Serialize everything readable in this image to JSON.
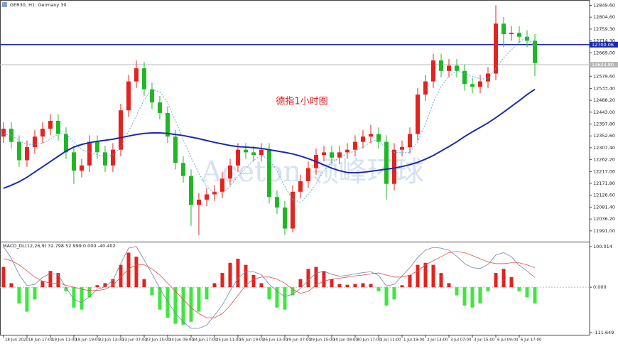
{
  "chart_data": [
    {
      "type": "candlestick",
      "title": "GER30, H1: Germany 30",
      "annotation": "德指1小时图",
      "watermark": "Aceton 领峰环球",
      "up_color": "#e3231f",
      "down_color": "#1fb824",
      "open": [
        12350,
        12380,
        12330,
        12260,
        12310,
        12350,
        12380,
        12410,
        12360,
        12290,
        12220,
        12240,
        12330,
        12290,
        12240,
        12300,
        12450,
        12560,
        12610,
        12530,
        12480,
        12440,
        12350,
        12250,
        12200,
        12090,
        12110,
        12130,
        12140,
        12190,
        12240,
        12300,
        12290,
        12280,
        12300,
        12120,
        12080,
        12000,
        12140,
        12180,
        12230,
        12280,
        12290,
        12270,
        12290,
        12300,
        12330,
        12350,
        12360,
        12330,
        12170,
        12300,
        12310,
        12360,
        12510,
        12560,
        12640,
        12600,
        12620,
        12600,
        12550,
        12540,
        12560,
        12590,
        12780,
        12740,
        12745,
        12730,
        12715
      ],
      "high": [
        12405,
        12405,
        12355,
        12335,
        12375,
        12405,
        12435,
        12435,
        12385,
        12315,
        12265,
        12355,
        12355,
        12315,
        12325,
        12475,
        12585,
        12640,
        12635,
        12555,
        12505,
        12465,
        12375,
        12275,
        12225,
        12135,
        12155,
        12165,
        12215,
        12265,
        12325,
        12325,
        12315,
        12325,
        12325,
        12145,
        12105,
        12165,
        12205,
        12255,
        12305,
        12315,
        12315,
        12315,
        12325,
        12355,
        12375,
        12395,
        12385,
        12355,
        12325,
        12335,
        12385,
        12535,
        12585,
        12665,
        12665,
        12645,
        12645,
        12625,
        12575,
        12585,
        12615,
        12850,
        12805,
        12770,
        12770,
        12755,
        12740
      ],
      "low": [
        12325,
        12305,
        12235,
        12235,
        12285,
        12325,
        12355,
        12335,
        12265,
        12170,
        12195,
        12215,
        12265,
        12215,
        12215,
        12275,
        12425,
        12535,
        12505,
        12455,
        12415,
        12325,
        12225,
        12175,
        12010,
        11975,
        12085,
        12105,
        12115,
        12165,
        12215,
        12265,
        12255,
        12255,
        12095,
        12055,
        11975,
        11985,
        12115,
        12155,
        12205,
        12255,
        12245,
        12245,
        12265,
        12275,
        12305,
        12325,
        12305,
        12110,
        12145,
        12275,
        12285,
        12335,
        12485,
        12535,
        12575,
        12575,
        12575,
        12525,
        12515,
        12515,
        12535,
        12565,
        12690,
        12715,
        12705,
        12690,
        12580
      ],
      "close": [
        12380,
        12330,
        12260,
        12310,
        12350,
        12380,
        12410,
        12360,
        12290,
        12220,
        12240,
        12330,
        12290,
        12240,
        12300,
        12450,
        12560,
        12610,
        12530,
        12480,
        12440,
        12350,
        12250,
        12200,
        12090,
        12110,
        12130,
        12140,
        12190,
        12240,
        12300,
        12290,
        12280,
        12300,
        12120,
        12080,
        12000,
        12140,
        12180,
        12230,
        12280,
        12290,
        12270,
        12290,
        12300,
        12330,
        12350,
        12360,
        12330,
        12170,
        12300,
        12310,
        12360,
        12510,
        12560,
        12640,
        12600,
        12620,
        12600,
        12550,
        12540,
        12560,
        12590,
        12780,
        12740,
        12745,
        12730,
        12715,
        12630
      ],
      "lines": [
        {
          "color": "#5aa7e0",
          "dash": true,
          "values": [
            12360,
            12355,
            12335,
            12320,
            12320,
            12325,
            12340,
            12360,
            12360,
            12330,
            12300,
            12290,
            12280,
            12275,
            12280,
            12310,
            12370,
            12430,
            12490,
            12530,
            12520,
            12480,
            12410,
            12340,
            12270,
            12210,
            12160,
            12135,
            12135,
            12160,
            12200,
            12230,
            12260,
            12280,
            12260,
            12220,
            12160,
            12110,
            12100,
            12130,
            12170,
            12220,
            12250,
            12270,
            12285,
            12295,
            12310,
            12330,
            12340,
            12300,
            12290,
            12290,
            12290,
            12330,
            12400,
            12480,
            12540,
            12580,
            12600,
            12590,
            12580,
            12570,
            12570,
            12610,
            12650,
            12680,
            12710,
            12730,
            12690
          ]
        },
        {
          "color": "#1a2bb0",
          "dash": false,
          "values": [
            12153,
            12165,
            12178,
            12195,
            12215,
            12235,
            12255,
            12275,
            12295,
            12310,
            12320,
            12327,
            12332,
            12336,
            12340,
            12346,
            12352,
            12358,
            12362,
            12364,
            12364,
            12362,
            12358,
            12354,
            12348,
            12342,
            12335,
            12328,
            12322,
            12316,
            12312,
            12310,
            12308,
            12305,
            12300,
            12295,
            12290,
            12284,
            12276,
            12266,
            12255,
            12242,
            12230,
            12220,
            12213,
            12212,
            12214,
            12218,
            12222,
            12226,
            12230,
            12236,
            12243,
            12252,
            12264,
            12278,
            12295,
            12312,
            12330,
            12350,
            12368,
            12385,
            12402,
            12422,
            12443,
            12465,
            12487,
            12510,
            12530
          ]
        }
      ],
      "hlines": [
        {
          "value": 12700.06,
          "label": "12700.06",
          "color": "#1a2bb0"
        },
        {
          "value": 12623.8,
          "label": "12623.80",
          "color": "#b8b8b8"
        }
      ],
      "ylim": [
        11950,
        12870
      ],
      "yticks": [
        {
          "value": 12849.6,
          "label": "12849.60"
        },
        {
          "value": 12804.6,
          "label": "12804.60"
        },
        {
          "value": 12759.3,
          "label": "12759.30"
        },
        {
          "value": 12714.3,
          "label": "12714.30"
        },
        {
          "value": 12669,
          "label": "12669.00"
        },
        {
          "value": 12579.6,
          "label": "12579.60"
        },
        {
          "value": 12533.4,
          "label": "12533.40"
        },
        {
          "value": 12488.2,
          "label": "12488.20"
        },
        {
          "value": 12443,
          "label": "12443.00"
        },
        {
          "value": 12397.8,
          "label": "12397.80"
        },
        {
          "value": 12352.6,
          "label": "12352.60"
        },
        {
          "value": 12307.4,
          "label": "12307.40"
        },
        {
          "value": 12262.2,
          "label": "12262.20"
        },
        {
          "value": 12217,
          "label": "12217.00"
        },
        {
          "value": 12171.8,
          "label": "12171.80"
        },
        {
          "value": 12126.6,
          "label": "12126.60"
        },
        {
          "value": 12081.4,
          "label": "12081.40"
        },
        {
          "value": 12036.2,
          "label": "12036.20"
        },
        {
          "value": 11991,
          "label": "11991.00"
        }
      ],
      "xlim": [
        -0.45,
        75
      ],
      "xticks": [
        {
          "value": 0,
          "label": "18 Jun 2020"
        },
        {
          "value": 3,
          "label": "18 Jun 17:00"
        },
        {
          "value": 6,
          "label": "19 Jun 11:00"
        },
        {
          "value": 9,
          "label": "19 Jun 19:00"
        },
        {
          "value": 12,
          "label": "22 Jun 13:00"
        },
        {
          "value": 15,
          "label": "23 Jun 07:00"
        },
        {
          "value": 18,
          "label": "23 Jun 15:00"
        },
        {
          "value": 21,
          "label": "24 Jun 09:00"
        },
        {
          "value": 24,
          "label": "24 Jun 17:00"
        },
        {
          "value": 27,
          "label": "25 Jun 11:00"
        },
        {
          "value": 30,
          "label": "25 Jun 19:00"
        },
        {
          "value": 33,
          "label": "26 Jun 13:00"
        },
        {
          "value": 36,
          "label": "29 Jun 07:00"
        },
        {
          "value": 39,
          "label": "29 Jun 15:00"
        },
        {
          "value": 42,
          "label": "30 Jun 09:00"
        },
        {
          "value": 45,
          "label": "30 Jun 17:00"
        },
        {
          "value": 48,
          "label": "1 Jul 11:00"
        },
        {
          "value": 51,
          "label": "1 Jul 19:00"
        },
        {
          "value": 54,
          "label": "2 Jul 13:00"
        },
        {
          "value": 57,
          "label": "3 Jul 07:00"
        },
        {
          "value": 60,
          "label": "3 Jul 15:00"
        },
        {
          "value": 63,
          "label": "6 Jul 09:00"
        },
        {
          "value": 66,
          "label": "6 Jul 17:00"
        }
      ]
    },
    {
      "type": "macd",
      "title": "MACD_DL(12,26,9) 32.798 52.999 0.000 -40.402",
      "pos_color": "#e3231f",
      "neg_color": "#3de83d",
      "main_color": "#7483a6",
      "signal_color": "#e05050",
      "histogram": [
        50,
        10,
        -40,
        -60,
        -30,
        15,
        40,
        35,
        -10,
        -50,
        -55,
        -25,
        5,
        10,
        20,
        55,
        85,
        75,
        20,
        -20,
        -55,
        -75,
        -90,
        -92,
        -85,
        -60,
        -30,
        10,
        35,
        60,
        70,
        55,
        30,
        10,
        -30,
        -50,
        -55,
        -20,
        20,
        45,
        50,
        40,
        20,
        8,
        6,
        8,
        10,
        8,
        -10,
        -45,
        -30,
        5,
        30,
        55,
        60,
        55,
        35,
        10,
        -20,
        -45,
        -50,
        -40,
        -10,
        35,
        45,
        25,
        -10,
        -25,
        -40
      ],
      "main": [
        100,
        71,
        31,
        4,
        7,
        24,
        34,
        31,
        -1,
        -30,
        -38,
        -23,
        -5,
        1,
        17,
        58,
        96,
        100,
        67,
        33,
        -3,
        -35,
        -64,
        -85,
        -101,
        -101,
        -93,
        -69,
        -44,
        -9,
        22,
        38,
        38,
        31,
        7,
        -10,
        -23,
        -17,
        -3,
        17,
        35,
        39,
        32,
        27,
        29,
        33,
        36,
        38,
        29,
        3,
        7,
        28,
        48,
        73,
        91,
        98,
        96,
        91,
        76,
        58,
        48,
        46,
        56,
        79,
        85,
        75,
        54,
        40,
        24
      ],
      "signal": [
        70,
        65,
        55,
        40,
        25,
        15,
        10,
        10,
        5,
        0,
        -5,
        -8,
        -8,
        -5,
        5,
        25,
        45,
        55,
        55,
        45,
        30,
        10,
        -10,
        -30,
        -50,
        -65,
        -75,
        -75,
        -65,
        -45,
        -20,
        5,
        20,
        25,
        25,
        20,
        10,
        -5,
        -15,
        -10,
        5,
        15,
        20,
        22,
        25,
        28,
        30,
        33,
        35,
        30,
        25,
        25,
        30,
        40,
        55,
        65,
        75,
        85,
        88,
        85,
        78,
        70,
        62,
        58,
        58,
        60,
        60,
        55,
        48
      ],
      "ylim": [
        -115,
        105
      ],
      "yticks": [
        100.014,
        {
          "value": 0,
          "label": "0.000"
        },
        -111.649
      ]
    }
  ]
}
